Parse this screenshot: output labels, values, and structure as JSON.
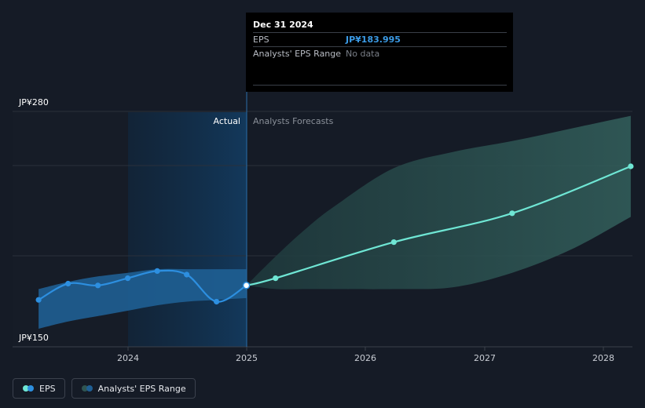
{
  "tooltip": {
    "date": "Dec 31 2024",
    "eps_label": "EPS",
    "eps_value": "JP¥183.995",
    "range_label": "Analysts' EPS Range",
    "range_value": "No data"
  },
  "legend": {
    "eps_label": "EPS",
    "range_label": "Analysts' EPS Range"
  },
  "colors": {
    "background": "#151b26",
    "eps_actual": "#2d8fe0",
    "eps_forecast": "#6fe6d4",
    "actual_band": "#1f5f94",
    "forecast_band": "#2f5552"
  },
  "chart_data": {
    "type": "line",
    "y_unit": "JP¥",
    "ylim": [
      150,
      280
    ],
    "y_labels": [
      "JP¥280",
      "JP¥150"
    ],
    "x_ticks": [
      "2024",
      "2025",
      "2026",
      "2027",
      "2028"
    ],
    "region_labels": {
      "actual": "Actual",
      "forecast": "Analysts Forecasts"
    },
    "grid": true,
    "series": [
      {
        "name": "EPS",
        "segment": "actual",
        "points": [
          {
            "x": "2023-03-31",
            "y": 176
          },
          {
            "x": "2023-06-30",
            "y": 185
          },
          {
            "x": "2023-09-30",
            "y": 184
          },
          {
            "x": "2023-12-31",
            "y": 188
          },
          {
            "x": "2024-03-31",
            "y": 192
          },
          {
            "x": "2024-06-30",
            "y": 190
          },
          {
            "x": "2024-09-30",
            "y": 175
          },
          {
            "x": "2024-12-31",
            "y": 184
          }
        ]
      },
      {
        "name": "EPS",
        "segment": "forecast",
        "points": [
          {
            "x": "2024-12-31",
            "y": 184
          },
          {
            "x": "2025-03-31",
            "y": 188
          },
          {
            "x": "2026-03-31",
            "y": 208
          },
          {
            "x": "2027-03-31",
            "y": 224
          },
          {
            "x": "2028-03-31",
            "y": 250
          }
        ]
      }
    ],
    "ranges": [
      {
        "name": "Analysts' EPS Range",
        "segment": "actual",
        "points": [
          {
            "x": "2023-03-31",
            "low": 160,
            "high": 182
          },
          {
            "x": "2023-06-30",
            "low": 164,
            "high": 186
          },
          {
            "x": "2023-09-30",
            "low": 167,
            "high": 189
          },
          {
            "x": "2023-12-31",
            "low": 170,
            "high": 191
          },
          {
            "x": "2024-03-31",
            "low": 173,
            "high": 193
          },
          {
            "x": "2024-06-30",
            "low": 175,
            "high": 193
          },
          {
            "x": "2024-09-30",
            "low": 176,
            "high": 193
          },
          {
            "x": "2024-12-31",
            "low": 177,
            "high": 193
          }
        ]
      },
      {
        "name": "Analysts' EPS Range",
        "segment": "forecast",
        "points": [
          {
            "x": "2024-12-31",
            "low": 184,
            "high": 184
          },
          {
            "x": "2025-03-31",
            "low": 182,
            "high": 200
          },
          {
            "x": "2025-06-30",
            "low": 182,
            "high": 215
          },
          {
            "x": "2025-09-30",
            "low": 182,
            "high": 228
          },
          {
            "x": "2026-03-31",
            "low": 182,
            "high": 249
          },
          {
            "x": "2026-09-30",
            "low": 183,
            "high": 258
          },
          {
            "x": "2027-03-31",
            "low": 191,
            "high": 264
          },
          {
            "x": "2027-09-30",
            "low": 204,
            "high": 271
          },
          {
            "x": "2028-03-31",
            "low": 222,
            "high": 278
          }
        ]
      }
    ]
  }
}
